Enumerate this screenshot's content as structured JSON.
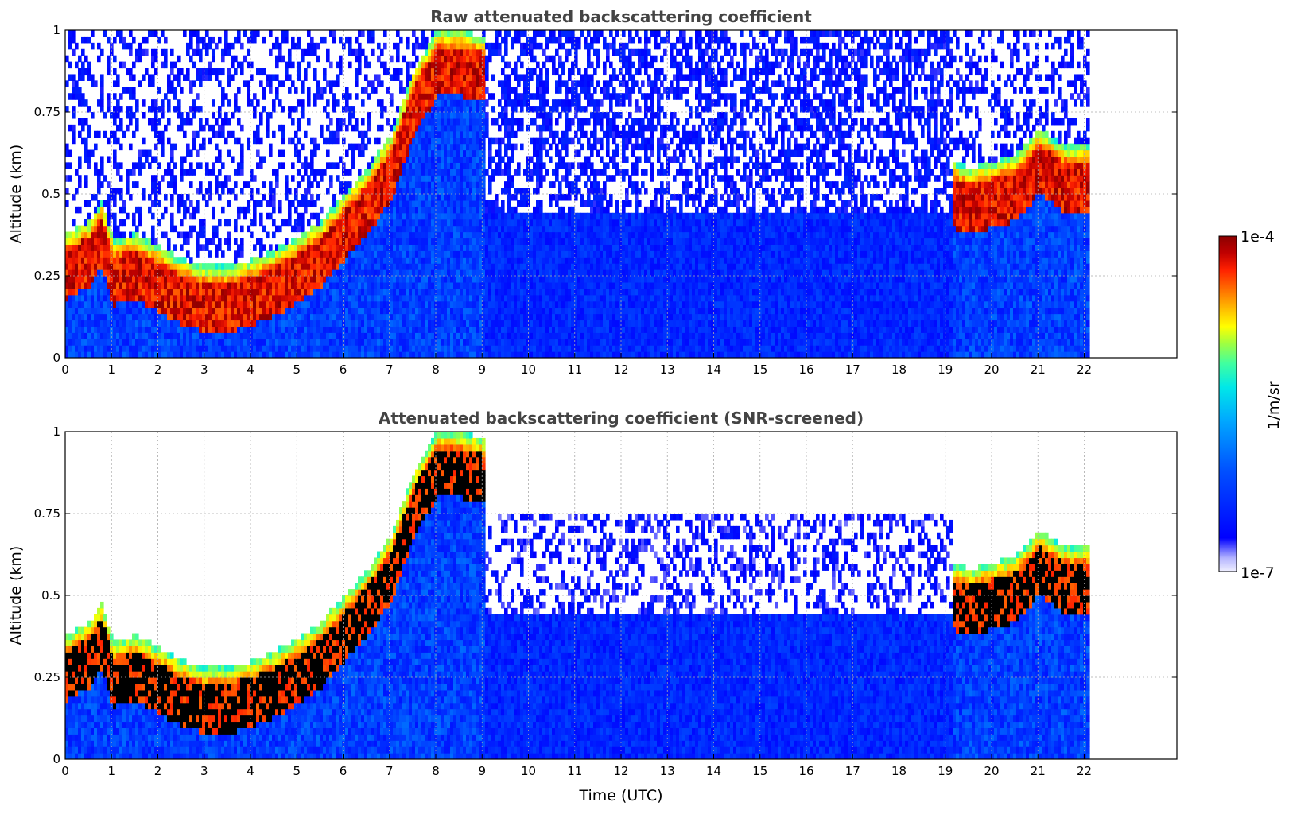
{
  "chart_data": [
    {
      "type": "heatmap",
      "title": "Raw attenuated backscattering coefficient",
      "xlabel": "",
      "ylabel": "Altitude (km)",
      "xlim": [
        0,
        24
      ],
      "ylim": [
        0,
        1
      ],
      "x_ticks": [
        "0",
        "1",
        "2",
        "3",
        "4",
        "5",
        "6",
        "7",
        "8",
        "9",
        "10",
        "11",
        "12",
        "13",
        "14",
        "15",
        "16",
        "17",
        "18",
        "19",
        "20",
        "21",
        "22"
      ],
      "y_ticks": [
        "0",
        "0.25",
        "0.5",
        "0.75",
        "1"
      ],
      "grid": true,
      "data_extent_hours": 22.1,
      "boundary_layer_top_km": [
        [
          0,
          0.38
        ],
        [
          0.5,
          0.42
        ],
        [
          0.75,
          0.48
        ],
        [
          1,
          0.36
        ],
        [
          1.5,
          0.38
        ],
        [
          2,
          0.34
        ],
        [
          2.5,
          0.3
        ],
        [
          3,
          0.28
        ],
        [
          3.5,
          0.28
        ],
        [
          4,
          0.3
        ],
        [
          4.5,
          0.33
        ],
        [
          5,
          0.37
        ],
        [
          5.5,
          0.42
        ],
        [
          6,
          0.5
        ],
        [
          6.5,
          0.58
        ],
        [
          7,
          0.68
        ],
        [
          7.5,
          0.88
        ],
        [
          8,
          1.0
        ],
        [
          8.5,
          1.0
        ],
        [
          9,
          0.98
        ],
        [
          19.1,
          0.6
        ],
        [
          19.5,
          0.58
        ],
        [
          20,
          0.6
        ],
        [
          20.5,
          0.62
        ],
        [
          21,
          0.7
        ],
        [
          21.5,
          0.65
        ],
        [
          22,
          0.65
        ]
      ]
    },
    {
      "type": "heatmap",
      "title": "Attenuated backscattering coefficient (SNR-screened)",
      "xlabel": "Time (UTC)",
      "ylabel": "Altitude (km)",
      "xlim": [
        0,
        24
      ],
      "ylim": [
        0,
        1
      ],
      "x_ticks": [
        "0",
        "1",
        "2",
        "3",
        "4",
        "5",
        "6",
        "7",
        "8",
        "9",
        "10",
        "11",
        "12",
        "13",
        "14",
        "15",
        "16",
        "17",
        "18",
        "19",
        "20",
        "21",
        "22"
      ],
      "y_ticks": [
        "0",
        "0.25",
        "0.5",
        "0.75",
        "1"
      ],
      "grid": true,
      "data_extent_hours": 22.1
    }
  ],
  "colorbar": {
    "max_label": "1e-4",
    "min_label": "1e-7",
    "unit_label": "1/m/sr",
    "colors": [
      "#f0f0ff",
      "#b4b4ff",
      "#0000ff",
      "#0050ff",
      "#00a8ff",
      "#00e8e8",
      "#40ffa0",
      "#a0ff40",
      "#ffff00",
      "#ffc000",
      "#ff7000",
      "#ff2000",
      "#c00000",
      "#8b0000"
    ]
  }
}
